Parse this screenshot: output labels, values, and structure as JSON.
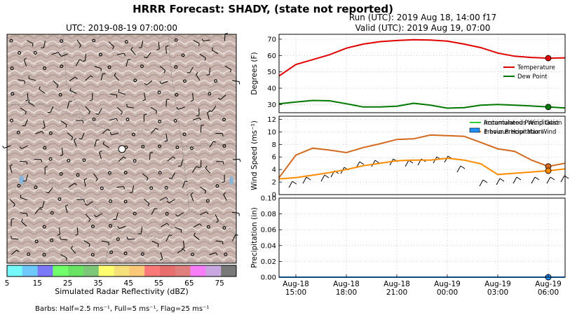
{
  "title": "HRRR Forecast: SHADY, (state not reported)",
  "run_label": "Run (UTC): 2019 Aug 18, 14:00 f17",
  "valid_label": "Valid (UTC): 2019 Aug 19, 07:00",
  "map": {
    "title": "UTC: 2019-08-19 07:00:00",
    "colorbar_label": "Simulated Radar Reflectivity (dBZ)",
    "colorbar_ticks": [
      "5",
      "15",
      "25",
      "35",
      "45",
      "55",
      "65",
      "75"
    ],
    "colorbar_colors": [
      "#74f8f8",
      "#6ec8fa",
      "#7b79f5",
      "#71ff6c",
      "#6ae264",
      "#7cc878",
      "#ffff70",
      "#f5e07a",
      "#fbc878",
      "#fb7878",
      "#e86e6e",
      "#e07e7e",
      "#f87ef8",
      "#c8a6e0",
      "#787878"
    ],
    "barb_note": "Barbs: Half=2.5 ms⁻¹, Full=5 ms⁻¹, Flag=25 ms⁻¹"
  },
  "chart_data": [
    {
      "type": "line",
      "ylabel": "Degrees (F)",
      "ylim": [
        25,
        73
      ],
      "yticks": [
        "30",
        "40",
        "50",
        "60",
        "70"
      ],
      "grid": true,
      "legend_position": "right",
      "x": [
        0,
        1,
        2,
        3,
        4,
        5,
        6,
        7,
        8,
        9,
        10,
        11,
        12,
        13,
        14,
        15,
        16,
        17
      ],
      "series": [
        {
          "name": "Temperature",
          "color": "#e00000",
          "values": [
            47.5,
            54.5,
            57.5,
            60.5,
            64.5,
            67,
            68.5,
            69.2,
            69.7,
            69.5,
            68.8,
            67,
            64.8,
            61.5,
            59.6,
            58.8,
            58.4,
            58.6
          ]
        },
        {
          "name": "Dew Point",
          "color": "#007800",
          "values": [
            30.5,
            31.5,
            32.5,
            32.3,
            30.5,
            28.5,
            28.5,
            29,
            30.8,
            29.6,
            27.8,
            28.1,
            29.6,
            30,
            29.6,
            29.1,
            28.5,
            27.9
          ]
        }
      ]
    },
    {
      "type": "line",
      "ylabel": "Wind Speed (ms⁻¹)",
      "ylim": [
        0,
        12.5
      ],
      "yticks": [
        "0",
        "2",
        "4",
        "6",
        "8",
        "10",
        "12"
      ],
      "grid": true,
      "legend_position": "top-right",
      "x": [
        0,
        1,
        2,
        3,
        4,
        5,
        6,
        7,
        8,
        9,
        10,
        11,
        12,
        13,
        14,
        15,
        16,
        17
      ],
      "series": [
        {
          "name": "Instantaneous Wind Gust",
          "color": "#d2691e",
          "values": [
            2.7,
            6.3,
            7.4,
            7.1,
            6.7,
            7.5,
            8.1,
            8.8,
            8.9,
            9.5,
            9.4,
            9.3,
            8.3,
            7.3,
            6.9,
            5.5,
            4.5,
            5.0
          ]
        },
        {
          "name": "Previous Hour Max Wind",
          "color": "#ff8c00",
          "values": [
            2.5,
            2.7,
            3.1,
            3.5,
            4.0,
            4.6,
            5.0,
            5.4,
            5.5,
            5.5,
            5.8,
            5.5,
            4.9,
            3.2,
            3.4,
            3.6,
            3.8,
            4.1
          ]
        }
      ]
    },
    {
      "type": "bar",
      "ylabel": "Precipitation (in)",
      "ylim": [
        0,
        0.1
      ],
      "yticks": [
        "0.00",
        "0.02",
        "0.04",
        "0.06",
        "0.08",
        "0.10"
      ],
      "grid": true,
      "legend_position": "top-right",
      "x": [
        0,
        1,
        2,
        3,
        4,
        5,
        6,
        7,
        8,
        9,
        10,
        11,
        12,
        13,
        14,
        15,
        16,
        17
      ],
      "series": [
        {
          "name": "Accumulated Precipitation",
          "color": "#32cd32",
          "values": [
            0,
            0,
            0,
            0,
            0,
            0,
            0,
            0,
            0,
            0,
            0,
            0,
            0,
            0,
            0,
            0,
            0,
            0
          ]
        },
        {
          "name": "1 hour Precipitation",
          "color": "#1e90ff",
          "values": [
            0,
            0,
            0,
            0,
            0,
            0,
            0,
            0,
            0,
            0,
            0,
            0,
            0,
            0,
            0,
            0,
            0,
            0
          ]
        }
      ]
    }
  ],
  "xaxis": {
    "ticks": [
      {
        "pos": 1,
        "date": "Aug-18",
        "time": "15:00"
      },
      {
        "pos": 4,
        "date": "Aug-18",
        "time": "18:00"
      },
      {
        "pos": 7,
        "date": "Aug-18",
        "time": "21:00"
      },
      {
        "pos": 10,
        "date": "Aug-19",
        "time": "00:00"
      },
      {
        "pos": 13,
        "date": "Aug-19",
        "time": "03:00"
      },
      {
        "pos": 16,
        "date": "Aug-19",
        "time": "06:00"
      }
    ]
  }
}
